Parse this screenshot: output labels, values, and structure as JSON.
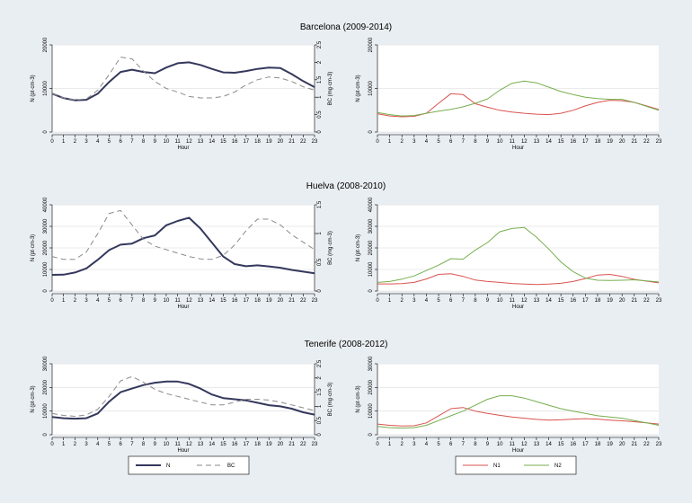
{
  "chart_data": [
    {
      "type": "line",
      "title": "Barcelona (2009-2014)",
      "xlabel": "Hour",
      "ylabel": "N (pt·cm-3)",
      "y2label": "BC (mg·cm-3)",
      "x": [
        0,
        1,
        2,
        3,
        4,
        5,
        6,
        7,
        8,
        9,
        10,
        11,
        12,
        13,
        14,
        15,
        16,
        17,
        18,
        19,
        20,
        21,
        22,
        23
      ],
      "xticks": [
        "0",
        "1",
        "2",
        "3",
        "4",
        "5",
        "6",
        "7",
        "8",
        "9",
        "10",
        "11",
        "12",
        "13",
        "14",
        "15",
        "16",
        "17",
        "18",
        "19",
        "20",
        "21",
        "22",
        "23"
      ],
      "ylim": [
        0,
        20000
      ],
      "yticks": [
        "0",
        "10000",
        "20000"
      ],
      "y2lim": [
        0,
        2.5
      ],
      "y2ticks": [
        "0",
        "0.5",
        "1",
        "1.5",
        "2",
        "2.5"
      ],
      "series": [
        {
          "name": "N",
          "axis": "left",
          "style": "solid",
          "values": [
            8800,
            7800,
            7300,
            7400,
            8800,
            11500,
            13800,
            14300,
            13800,
            13500,
            14800,
            15800,
            16000,
            15400,
            14500,
            13700,
            13600,
            14000,
            14500,
            14800,
            14700,
            13300,
            11700,
            10300
          ]
        },
        {
          "name": "BC",
          "axis": "right",
          "style": "dashed",
          "values": [
            1.1,
            0.98,
            0.92,
            0.95,
            1.2,
            1.65,
            2.15,
            2.1,
            1.75,
            1.45,
            1.25,
            1.15,
            1.02,
            0.98,
            0.98,
            1.02,
            1.15,
            1.35,
            1.5,
            1.58,
            1.55,
            1.45,
            1.3,
            1.2
          ]
        }
      ]
    },
    {
      "type": "line",
      "xlabel": "Hour",
      "ylabel": "N (pt·cm-3)",
      "x": [
        0,
        1,
        2,
        3,
        4,
        5,
        6,
        7,
        8,
        9,
        10,
        11,
        12,
        13,
        14,
        15,
        16,
        17,
        18,
        19,
        20,
        21,
        22,
        23
      ],
      "xticks": [
        "0",
        "1",
        "2",
        "3",
        "4",
        "5",
        "6",
        "7",
        "8",
        "9",
        "10",
        "11",
        "12",
        "13",
        "14",
        "15",
        "16",
        "17",
        "18",
        "19",
        "20",
        "21",
        "22",
        "23"
      ],
      "ylim": [
        0,
        20000
      ],
      "yticks": [
        "0",
        "10000",
        "20000"
      ],
      "series": [
        {
          "name": "N1",
          "axis": "left",
          "style": "solid",
          "color": "#d9534f",
          "values": [
            4200,
            3700,
            3500,
            3600,
            4300,
            6600,
            8800,
            8600,
            6500,
            5700,
            5000,
            4600,
            4300,
            4100,
            4000,
            4300,
            5000,
            6000,
            6800,
            7300,
            7200,
            6800,
            6000,
            5200
          ]
        },
        {
          "name": "N2",
          "axis": "left",
          "style": "solid",
          "color": "#77ae4d",
          "values": [
            4500,
            4000,
            3700,
            3800,
            4300,
            4800,
            5200,
            5800,
            6600,
            7600,
            9600,
            11200,
            11700,
            11300,
            10300,
            9300,
            8600,
            8000,
            7700,
            7500,
            7500,
            6800,
            5900,
            5000
          ]
        }
      ]
    },
    {
      "type": "line",
      "title": "Huelva (2008-2010)",
      "xlabel": "Hour",
      "ylabel": "N (pt·cm-3)",
      "y2label": "BC (mg·cm-3)",
      "x": [
        0,
        1,
        2,
        3,
        4,
        5,
        6,
        7,
        8,
        9,
        10,
        11,
        12,
        13,
        14,
        15,
        16,
        17,
        18,
        19,
        20,
        21,
        22,
        23
      ],
      "xticks": [
        "0",
        "1",
        "2",
        "3",
        "4",
        "5",
        "6",
        "7",
        "8",
        "9",
        "10",
        "11",
        "12",
        "13",
        "14",
        "15",
        "16",
        "17",
        "18",
        "19",
        "20",
        "21",
        "22",
        "23"
      ],
      "ylim": [
        0,
        40000
      ],
      "yticks": [
        "0",
        "10000",
        "20000",
        "30000",
        "40000"
      ],
      "y2lim": [
        0,
        1.5
      ],
      "y2ticks": [
        "0",
        "0.5",
        "1",
        "1.5"
      ],
      "series": [
        {
          "name": "N",
          "axis": "left",
          "style": "solid",
          "values": [
            7500,
            7600,
            8600,
            10500,
            14500,
            19000,
            21500,
            22000,
            24500,
            25800,
            30500,
            32500,
            34000,
            29000,
            22500,
            16000,
            12500,
            11500,
            11900,
            11400,
            10800,
            9800,
            9000,
            8200
          ]
        },
        {
          "name": "BC",
          "axis": "right",
          "style": "dashed",
          "values": [
            0.6,
            0.55,
            0.55,
            0.68,
            1.0,
            1.35,
            1.4,
            1.15,
            0.9,
            0.78,
            0.72,
            0.66,
            0.6,
            0.56,
            0.55,
            0.62,
            0.8,
            1.05,
            1.25,
            1.25,
            1.15,
            0.98,
            0.85,
            0.72
          ]
        }
      ]
    },
    {
      "type": "line",
      "xlabel": "Hour",
      "ylabel": "N (pt·cm-3)",
      "x": [
        0,
        1,
        2,
        3,
        4,
        5,
        6,
        7,
        8,
        9,
        10,
        11,
        12,
        13,
        14,
        15,
        16,
        17,
        18,
        19,
        20,
        21,
        22,
        23
      ],
      "xticks": [
        "0",
        "1",
        "2",
        "3",
        "4",
        "5",
        "6",
        "7",
        "8",
        "9",
        "10",
        "11",
        "12",
        "13",
        "14",
        "15",
        "16",
        "17",
        "18",
        "19",
        "20",
        "21",
        "22",
        "23"
      ],
      "ylim": [
        0,
        40000
      ],
      "yticks": [
        "0",
        "10000",
        "20000",
        "30000",
        "40000"
      ],
      "series": [
        {
          "name": "N1",
          "axis": "left",
          "style": "solid",
          "color": "#d9534f",
          "values": [
            3300,
            3300,
            3400,
            4000,
            5600,
            7700,
            8000,
            6800,
            5100,
            4400,
            4000,
            3500,
            3200,
            3000,
            3200,
            3600,
            4400,
            5800,
            7400,
            7700,
            6800,
            5400,
            4600,
            3800
          ]
        },
        {
          "name": "N2",
          "axis": "left",
          "style": "solid",
          "color": "#77ae4d",
          "values": [
            4000,
            4400,
            5500,
            7000,
            9500,
            12000,
            15000,
            14800,
            19000,
            22500,
            27500,
            29000,
            29500,
            25000,
            19500,
            13500,
            9000,
            6000,
            5000,
            4900,
            5000,
            5200,
            4700,
            4200
          ]
        }
      ]
    },
    {
      "type": "line",
      "title": "Tenerife (2008-2012)",
      "xlabel": "Hour",
      "ylabel": "N (pt·cm-3)",
      "y2label": "BC (mg·cm-3)",
      "x": [
        0,
        1,
        2,
        3,
        4,
        5,
        6,
        7,
        8,
        9,
        10,
        11,
        12,
        13,
        14,
        15,
        16,
        17,
        18,
        19,
        20,
        21,
        22,
        23
      ],
      "xticks": [
        "0",
        "1",
        "2",
        "3",
        "4",
        "5",
        "6",
        "7",
        "8",
        "9",
        "10",
        "11",
        "12",
        "13",
        "14",
        "15",
        "16",
        "17",
        "18",
        "19",
        "20",
        "21",
        "22",
        "23"
      ],
      "ylim": [
        0,
        30000
      ],
      "yticks": [
        "0",
        "10000",
        "20000",
        "30000"
      ],
      "y2lim": [
        0,
        2.5
      ],
      "y2ticks": [
        "0",
        "0.5",
        "1",
        "1.5",
        "2",
        "2.5"
      ],
      "series": [
        {
          "name": "N",
          "axis": "left",
          "style": "solid",
          "values": [
            7500,
            7000,
            6800,
            7000,
            9000,
            14000,
            18000,
            19500,
            21000,
            22000,
            22500,
            22500,
            21500,
            19500,
            17000,
            15500,
            15000,
            14500,
            13500,
            12500,
            12000,
            11000,
            9500,
            8500
          ]
        },
        {
          "name": "BC",
          "axis": "right",
          "style": "dashed",
          "values": [
            0.75,
            0.68,
            0.65,
            0.7,
            0.9,
            1.35,
            1.9,
            2.05,
            1.85,
            1.6,
            1.45,
            1.35,
            1.25,
            1.15,
            1.05,
            1.05,
            1.15,
            1.25,
            1.25,
            1.22,
            1.15,
            1.05,
            0.95,
            0.85
          ]
        }
      ]
    },
    {
      "type": "line",
      "xlabel": "Hour",
      "ylabel": "N (pt·cm-3)",
      "x": [
        0,
        1,
        2,
        3,
        4,
        5,
        6,
        7,
        8,
        9,
        10,
        11,
        12,
        13,
        14,
        15,
        16,
        17,
        18,
        19,
        20,
        21,
        22,
        23
      ],
      "xticks": [
        "0",
        "1",
        "2",
        "3",
        "4",
        "5",
        "6",
        "7",
        "8",
        "9",
        "10",
        "11",
        "12",
        "13",
        "14",
        "15",
        "16",
        "17",
        "18",
        "19",
        "20",
        "21",
        "22",
        "23"
      ],
      "ylim": [
        0,
        30000
      ],
      "yticks": [
        "0",
        "10000",
        "20000",
        "30000"
      ],
      "series": [
        {
          "name": "N1",
          "axis": "left",
          "style": "solid",
          "color": "#d9534f",
          "values": [
            4500,
            4000,
            3700,
            3800,
            5000,
            8000,
            11000,
            11500,
            10000,
            9000,
            8200,
            7500,
            7000,
            6500,
            6200,
            6300,
            6600,
            6800,
            6600,
            6200,
            5900,
            5500,
            5000,
            4500
          ]
        },
        {
          "name": "N2",
          "axis": "left",
          "style": "solid",
          "color": "#77ae4d",
          "values": [
            3500,
            3000,
            2800,
            3000,
            4000,
            6000,
            8000,
            10000,
            12500,
            15000,
            16500,
            16500,
            15500,
            14000,
            12500,
            11000,
            10000,
            9000,
            8000,
            7500,
            7000,
            6000,
            5000,
            4000
          ]
        }
      ]
    }
  ],
  "legends": [
    {
      "items": [
        {
          "label": "N",
          "style": "solid",
          "color": "#34385c"
        },
        {
          "label": "BC",
          "style": "dashed",
          "color": "#8a8a8a"
        }
      ]
    },
    {
      "items": [
        {
          "label": "N1",
          "style": "solid",
          "color": "#d9534f"
        },
        {
          "label": "N2",
          "style": "solid",
          "color": "#77ae4d"
        }
      ]
    }
  ]
}
